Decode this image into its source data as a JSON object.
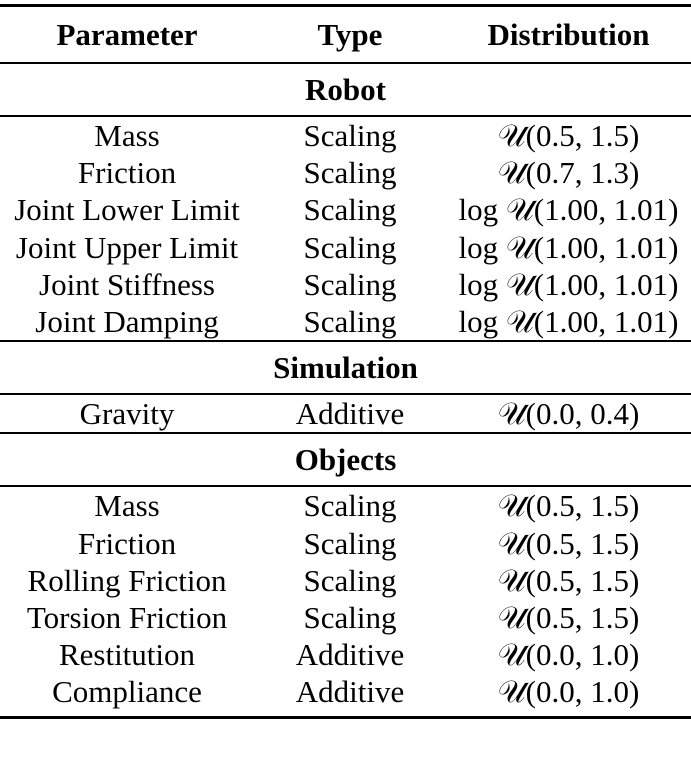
{
  "headers": {
    "parameter": "Parameter",
    "type": "Type",
    "distribution": "Distribution"
  },
  "sections": [
    {
      "title": "Robot",
      "rows": [
        {
          "parameter": "Mass",
          "type": "Scaling",
          "distribution": "𝒰(0.5, 1.5)"
        },
        {
          "parameter": "Friction",
          "type": "Scaling",
          "distribution": "𝒰(0.7, 1.3)"
        },
        {
          "parameter": "Joint Lower Limit",
          "type": "Scaling",
          "distribution": "log 𝒰(1.00, 1.01)"
        },
        {
          "parameter": "Joint Upper Limit",
          "type": "Scaling",
          "distribution": "log 𝒰(1.00, 1.01)"
        },
        {
          "parameter": "Joint Stiffness",
          "type": "Scaling",
          "distribution": "log 𝒰(1.00, 1.01)"
        },
        {
          "parameter": "Joint Damping",
          "type": "Scaling",
          "distribution": "log 𝒰(1.00, 1.01)"
        }
      ]
    },
    {
      "title": "Simulation",
      "rows": [
        {
          "parameter": "Gravity",
          "type": "Additive",
          "distribution": "𝒰(0.0, 0.4)"
        }
      ]
    },
    {
      "title": "Objects",
      "rows": [
        {
          "parameter": "Mass",
          "type": "Scaling",
          "distribution": "𝒰(0.5, 1.5)"
        },
        {
          "parameter": "Friction",
          "type": "Scaling",
          "distribution": "𝒰(0.5, 1.5)"
        },
        {
          "parameter": "Rolling Friction",
          "type": "Scaling",
          "distribution": "𝒰(0.5, 1.5)"
        },
        {
          "parameter": "Torsion Friction",
          "type": "Scaling",
          "distribution": "𝒰(0.5, 1.5)"
        },
        {
          "parameter": "Restitution",
          "type": "Additive",
          "distribution": "𝒰(0.0, 1.0)"
        },
        {
          "parameter": "Compliance",
          "type": "Additive",
          "distribution": "𝒰(0.0, 1.0)"
        }
      ]
    }
  ]
}
